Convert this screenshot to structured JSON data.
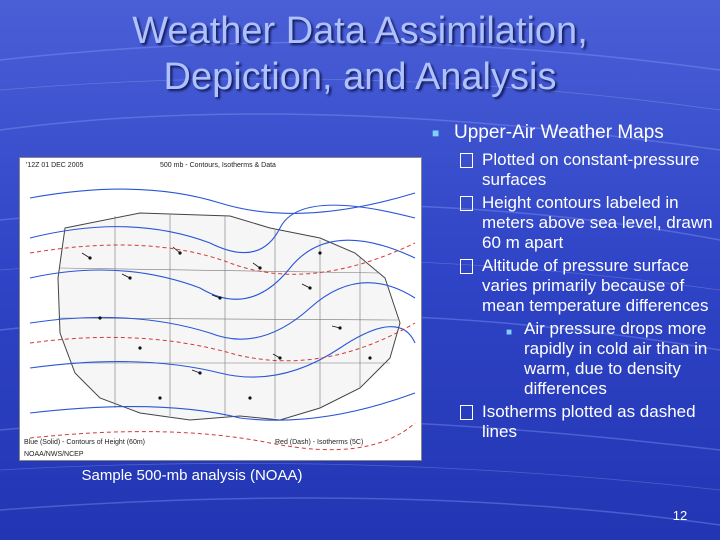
{
  "slide": {
    "title_line1": "Weather Data Assimilation,",
    "title_line2": "Depiction, and Analysis",
    "page_number": "12",
    "colors": {
      "background": "#2b3fc0",
      "title": "#aec2ff",
      "bullet_marker": "#7fd0ff"
    }
  },
  "bullets": {
    "heading": "Upper-Air Weather Maps",
    "items": [
      "Plotted on constant-pressure surfaces",
      "Height contours labeled in meters above sea level, drawn 60 m apart",
      "Altitude of pressure surface varies primarily because of mean temperature differences",
      "Isotherms plotted as dashed lines"
    ],
    "sub_item": "Air pressure drops more rapidly in cold air than in warm, due to density differences"
  },
  "figure": {
    "caption": "Sample 500-mb analysis (NOAA)",
    "header_left": "'12Z  01 DEC 2005",
    "header_right": "500 mb - Contours, Isotherms & Data",
    "legend_left": "Blue (Solid) - Contours of Height (60m)",
    "legend_right": "Red (Dash) - Isotherms (5C)",
    "credit": "NOAA/NWS/NCEP"
  }
}
